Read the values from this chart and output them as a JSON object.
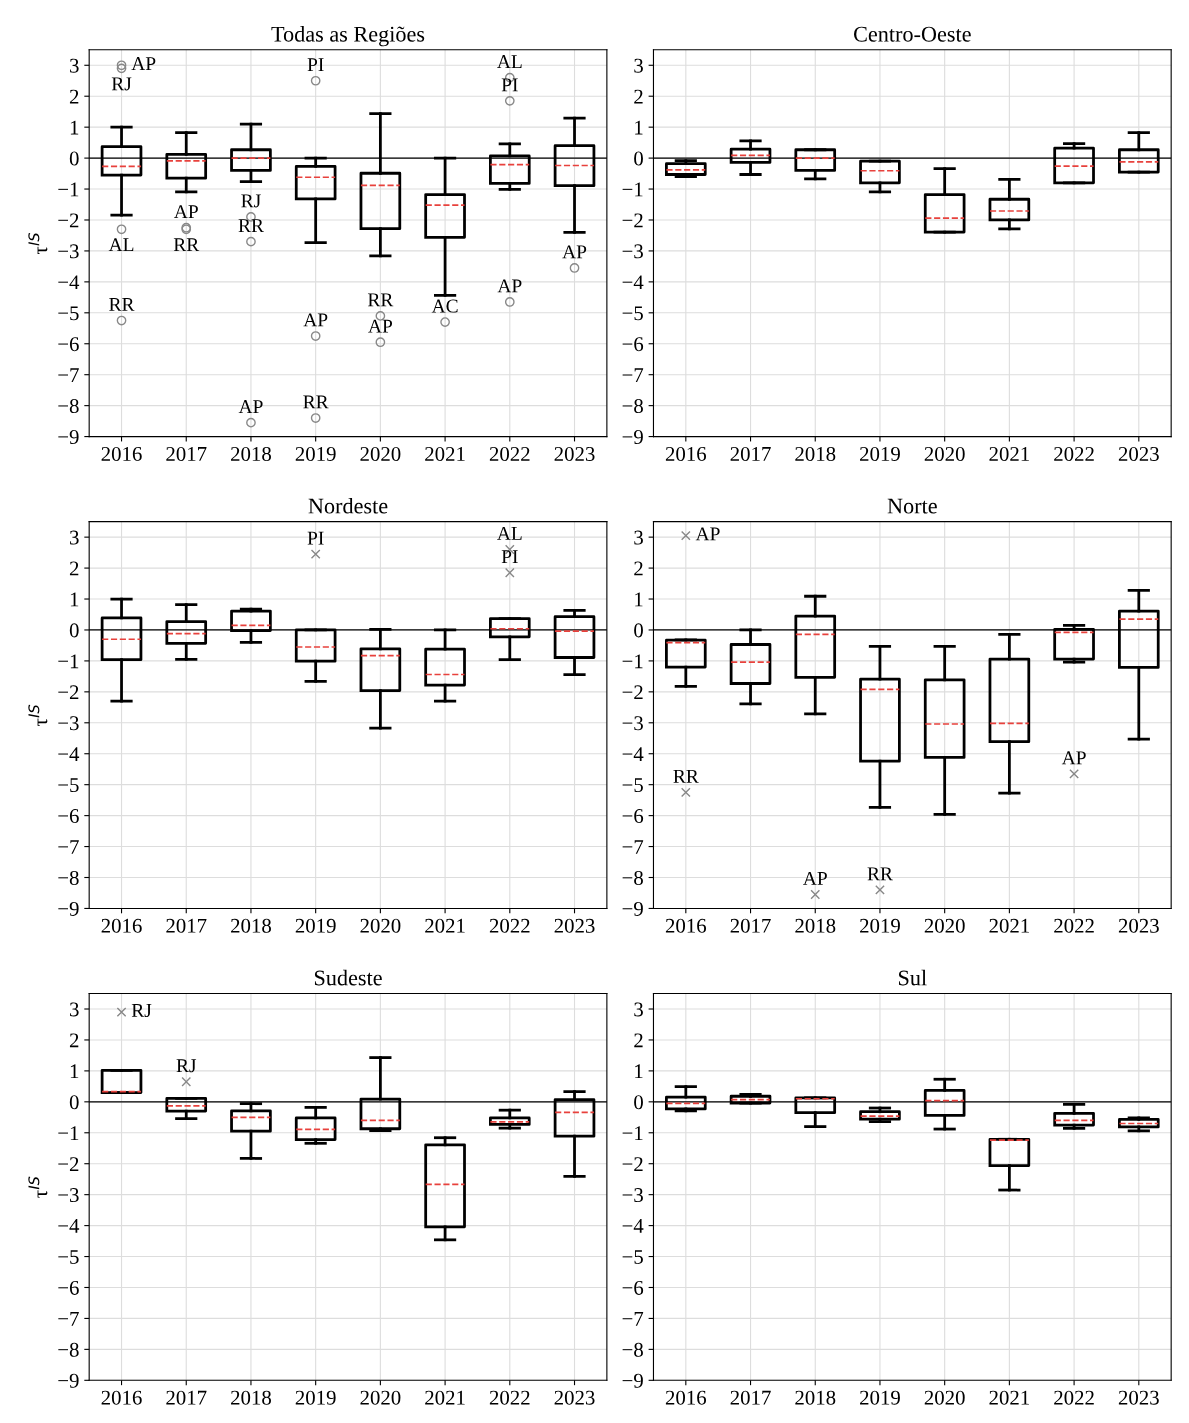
{
  "chart_data": [
    {
      "type": "box",
      "title": "Todas as Regiões",
      "ylabel": "τ$^{IS}$",
      "categories": [
        "2016",
        "2017",
        "2018",
        "2019",
        "2020",
        "2021",
        "2022",
        "2023"
      ],
      "ylim": [
        -9,
        3.5
      ],
      "yticks": [
        -9,
        -8,
        -7,
        -6,
        -5,
        -4,
        -3,
        -2,
        -1,
        0,
        1,
        2,
        3
      ],
      "grid": true,
      "marker": "circle",
      "ref_lines": [
        {
          "axis": "y",
          "value": 0,
          "color": "#000000"
        }
      ],
      "boxes": [
        {
          "low": -1.84,
          "q1": -0.55,
          "median": -0.27,
          "q3": 0.37,
          "high": 1.0,
          "outliers": [
            3.0,
            2.9,
            -2.3,
            -5.25
          ]
        },
        {
          "low": -1.09,
          "q1": -0.65,
          "median": -0.09,
          "q3": 0.12,
          "high": 0.82,
          "outliers": [
            -2.25,
            -2.3
          ]
        },
        {
          "low": -0.76,
          "q1": -0.4,
          "median": 0.0,
          "q3": 0.27,
          "high": 1.1,
          "outliers": [
            -1.9,
            -2.7,
            -8.55
          ]
        },
        {
          "low": -2.73,
          "q1": -1.32,
          "median": -0.62,
          "q3": -0.27,
          "high": 0.0,
          "outliers": [
            2.5,
            -5.75,
            -8.4
          ]
        },
        {
          "low": -3.16,
          "q1": -2.28,
          "median": -0.88,
          "q3": -0.49,
          "high": 1.44,
          "outliers": [
            -5.1,
            -5.95
          ]
        },
        {
          "low": -4.44,
          "q1": -2.56,
          "median": -1.52,
          "q3": -1.18,
          "high": 0.0,
          "outliers": [
            -5.3
          ]
        },
        {
          "low": -1.01,
          "q1": -0.82,
          "median": -0.21,
          "q3": 0.07,
          "high": 0.46,
          "outliers": [
            2.6,
            1.85,
            -4.65
          ]
        },
        {
          "low": -2.4,
          "q1": -0.89,
          "median": -0.24,
          "q3": 0.4,
          "high": 1.29,
          "outliers": [
            -3.55
          ]
        }
      ],
      "annotations": [
        "AP",
        "RJ",
        "AL",
        "RR",
        "AP",
        "RR",
        "RJ",
        "RR",
        "AP",
        "PI",
        "AP",
        "RR",
        "RR",
        "AP",
        "AC",
        "AL",
        "PI",
        "AP",
        "AP"
      ]
    },
    {
      "type": "box",
      "title": "Centro-Oeste",
      "categories": [
        "2016",
        "2017",
        "2018",
        "2019",
        "2020",
        "2021",
        "2022",
        "2023"
      ],
      "ylim": [
        -9,
        3.5
      ],
      "yticks": [
        -9,
        -8,
        -7,
        -6,
        -5,
        -4,
        -3,
        -2,
        -1,
        0,
        1,
        2,
        3
      ],
      "grid": true,
      "ref_lines": [
        {
          "axis": "y",
          "value": 0,
          "color": "#000000"
        }
      ],
      "boxes": [
        {
          "low": -0.6,
          "q1": -0.53,
          "median": -0.38,
          "q3": -0.18,
          "high": -0.08
        },
        {
          "low": -0.53,
          "q1": -0.14,
          "median": 0.09,
          "q3": 0.29,
          "high": 0.56
        },
        {
          "low": -0.67,
          "q1": -0.4,
          "median": 0.0,
          "q3": 0.27,
          "high": 0.27
        },
        {
          "low": -1.09,
          "q1": -0.8,
          "median": -0.41,
          "q3": -0.1,
          "high": -0.1
        },
        {
          "low": -2.39,
          "q1": -2.39,
          "median": -1.94,
          "q3": -1.18,
          "high": -0.34
        },
        {
          "low": -2.29,
          "q1": -2.0,
          "median": -1.71,
          "q3": -1.33,
          "high": -0.69
        },
        {
          "low": -0.8,
          "q1": -0.8,
          "median": -0.26,
          "q3": 0.32,
          "high": 0.47
        },
        {
          "low": -0.45,
          "q1": -0.45,
          "median": -0.12,
          "q3": 0.27,
          "high": 0.82
        }
      ]
    },
    {
      "type": "box",
      "title": "Nordeste",
      "ylabel": "τ$^{IS}$",
      "categories": [
        "2016",
        "2017",
        "2018",
        "2019",
        "2020",
        "2021",
        "2022",
        "2023"
      ],
      "ylim": [
        -9,
        3.5
      ],
      "yticks": [
        -9,
        -8,
        -7,
        -6,
        -5,
        -4,
        -3,
        -2,
        -1,
        0,
        1,
        2,
        3
      ],
      "grid": true,
      "marker": "cross",
      "ref_lines": [
        {
          "axis": "y",
          "value": 0,
          "color": "#000000"
        }
      ],
      "boxes": [
        {
          "low": -2.3,
          "q1": -0.96,
          "median": -0.3,
          "q3": 0.39,
          "high": 1.0
        },
        {
          "low": -0.95,
          "q1": -0.43,
          "median": -0.12,
          "q3": 0.27,
          "high": 0.82
        },
        {
          "low": -0.4,
          "q1": -0.02,
          "median": 0.15,
          "q3": 0.61,
          "high": 0.67
        },
        {
          "low": -1.66,
          "q1": -1.01,
          "median": -0.55,
          "q3": 0.0,
          "high": 0.0,
          "outliers": [
            2.45
          ]
        },
        {
          "low": -3.17,
          "q1": -1.96,
          "median": -0.83,
          "q3": -0.61,
          "high": 0.02
        },
        {
          "low": -2.3,
          "q1": -1.78,
          "median": -1.44,
          "q3": -0.62,
          "high": 0.0
        },
        {
          "low": -0.96,
          "q1": -0.22,
          "median": 0.04,
          "q3": 0.37,
          "high": 0.37,
          "outliers": [
            2.6,
            1.85
          ]
        },
        {
          "low": -1.44,
          "q1": -0.89,
          "median": -0.04,
          "q3": 0.43,
          "high": 0.63
        }
      ],
      "annotations": [
        "PI",
        "AL",
        "PI"
      ]
    },
    {
      "type": "box",
      "title": "Norte",
      "categories": [
        "2016",
        "2017",
        "2018",
        "2019",
        "2020",
        "2021",
        "2022",
        "2023"
      ],
      "ylim": [
        -9,
        3.5
      ],
      "yticks": [
        -9,
        -8,
        -7,
        -6,
        -5,
        -4,
        -3,
        -2,
        -1,
        0,
        1,
        2,
        3
      ],
      "grid": true,
      "marker": "cross",
      "ref_lines": [
        {
          "axis": "y",
          "value": 0,
          "color": "#000000"
        }
      ],
      "boxes": [
        {
          "low": -1.82,
          "q1": -1.2,
          "median": -0.41,
          "q3": -0.33,
          "high": -0.32,
          "outliers": [
            3.05,
            -5.25
          ]
        },
        {
          "low": -2.39,
          "q1": -1.73,
          "median": -1.04,
          "q3": -0.47,
          "high": 0.0
        },
        {
          "low": -2.71,
          "q1": -1.53,
          "median": -0.14,
          "q3": 0.45,
          "high": 1.09,
          "outliers": [
            -8.55
          ]
        },
        {
          "low": -5.73,
          "q1": -4.24,
          "median": -1.92,
          "q3": -1.59,
          "high": -0.53,
          "outliers": [
            -8.4
          ]
        },
        {
          "low": -5.96,
          "q1": -4.12,
          "median": -3.04,
          "q3": -1.61,
          "high": -0.53
        },
        {
          "low": -5.27,
          "q1": -3.61,
          "median": -3.02,
          "q3": -0.94,
          "high": -0.14
        },
        {
          "low": -1.04,
          "q1": -0.94,
          "median": -0.08,
          "q3": 0.02,
          "high": 0.15,
          "outliers": [
            -4.65
          ]
        },
        {
          "low": -3.53,
          "q1": -1.21,
          "median": 0.35,
          "q3": 0.61,
          "high": 1.28
        }
      ],
      "annotations": [
        "AP",
        "RR",
        "AP",
        "RR",
        "AP"
      ]
    },
    {
      "type": "box",
      "title": "Sudeste",
      "ylabel": "τ$^{IS}$",
      "categories": [
        "2016",
        "2017",
        "2018",
        "2019",
        "2020",
        "2021",
        "2022",
        "2023"
      ],
      "ylim": [
        -9,
        3.5
      ],
      "yticks": [
        -9,
        -8,
        -7,
        -6,
        -5,
        -4,
        -3,
        -2,
        -1,
        0,
        1,
        2,
        3
      ],
      "grid": true,
      "marker": "cross",
      "ref_lines": [
        {
          "axis": "y",
          "value": 0,
          "color": "#000000"
        }
      ],
      "boxes": [
        {
          "low": 0.3,
          "q1": 0.3,
          "median": 0.33,
          "q3": 1.02,
          "high": 1.02,
          "outliers": [
            2.9
          ]
        },
        {
          "low": -0.54,
          "q1": -0.3,
          "median": -0.13,
          "q3": 0.11,
          "high": 0.11,
          "outliers": [
            0.65
          ]
        },
        {
          "low": -1.83,
          "q1": -0.95,
          "median": -0.5,
          "q3": -0.29,
          "high": -0.06
        },
        {
          "low": -1.34,
          "q1": -1.22,
          "median": -0.89,
          "q3": -0.52,
          "high": -0.18
        },
        {
          "low": -0.93,
          "q1": -0.87,
          "median": -0.6,
          "q3": 0.09,
          "high": 1.43
        },
        {
          "low": -4.46,
          "q1": -4.04,
          "median": -2.67,
          "q3": -1.39,
          "high": -1.16
        },
        {
          "low": -0.85,
          "q1": -0.73,
          "median": -0.65,
          "q3": -0.52,
          "high": -0.27
        },
        {
          "low": -2.41,
          "q1": -1.11,
          "median": -0.34,
          "q3": 0.07,
          "high": 0.33
        }
      ],
      "annotations": [
        "RJ",
        "RJ"
      ]
    },
    {
      "type": "box",
      "title": "Sul",
      "categories": [
        "2016",
        "2017",
        "2018",
        "2019",
        "2020",
        "2021",
        "2022",
        "2023"
      ],
      "ylim": [
        -9,
        3.5
      ],
      "yticks": [
        -9,
        -8,
        -7,
        -6,
        -5,
        -4,
        -3,
        -2,
        -1,
        0,
        1,
        2,
        3
      ],
      "grid": true,
      "ref_lines": [
        {
          "axis": "y",
          "value": 0,
          "color": "#000000"
        }
      ],
      "boxes": [
        {
          "low": -0.29,
          "q1": -0.23,
          "median": -0.05,
          "q3": 0.15,
          "high": 0.49
        },
        {
          "low": -0.04,
          "q1": -0.04,
          "median": 0.07,
          "q3": 0.18,
          "high": 0.24
        },
        {
          "low": -0.8,
          "q1": -0.35,
          "median": 0.1,
          "q3": 0.13,
          "high": 0.13
        },
        {
          "low": -0.64,
          "q1": -0.56,
          "median": -0.46,
          "q3": -0.32,
          "high": -0.2
        },
        {
          "low": -0.88,
          "q1": -0.44,
          "median": 0.04,
          "q3": 0.37,
          "high": 0.73
        },
        {
          "low": -2.85,
          "q1": -2.06,
          "median": -1.24,
          "q3": -1.21,
          "high": -1.21
        },
        {
          "low": -0.86,
          "q1": -0.75,
          "median": -0.6,
          "q3": -0.37,
          "high": -0.08
        },
        {
          "low": -0.94,
          "q1": -0.81,
          "median": -0.7,
          "q3": -0.57,
          "high": -0.52
        }
      ]
    }
  ]
}
